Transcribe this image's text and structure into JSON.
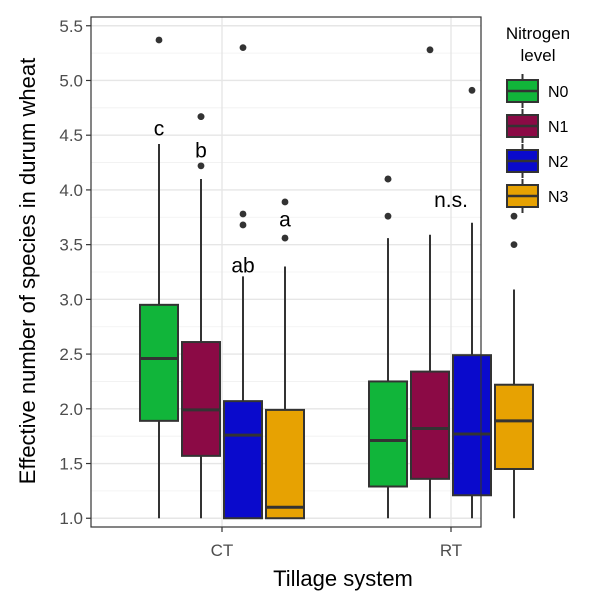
{
  "chart_data": {
    "type": "box",
    "xlabel": "Tillage system",
    "ylabel": "Effective number of species in durum wheat",
    "ylim": [
      0.92,
      5.58
    ],
    "yticks": [
      1.0,
      1.5,
      2.0,
      2.5,
      3.0,
      3.5,
      4.0,
      4.5,
      5.0,
      5.5
    ],
    "ytick_labels": [
      "1.0",
      "1.5",
      "2.0",
      "2.5",
      "3.0",
      "3.5",
      "4.0",
      "4.5",
      "5.0",
      "5.5"
    ],
    "categories": [
      "CT",
      "RT"
    ],
    "grid": true,
    "legend": {
      "title_line1": "Nitrogen",
      "title_line2": "level",
      "position": "top-right",
      "entries": [
        "N0",
        "N1",
        "N2",
        "N3"
      ]
    },
    "series": [
      {
        "name": "N0",
        "color": "#11b53a"
      },
      {
        "name": "N1",
        "color": "#8b0a45"
      },
      {
        "name": "N2",
        "color": "#0a0acc"
      },
      {
        "name": "N3",
        "color": "#e7a202"
      }
    ],
    "boxes": [
      {
        "category": "CT",
        "series": "N0",
        "whisker_low": 1.0,
        "q1": 1.89,
        "median": 2.46,
        "q3": 2.95,
        "whisker_high": 4.42,
        "outliers": [
          5.37
        ]
      },
      {
        "category": "CT",
        "series": "N1",
        "whisker_low": 1.0,
        "q1": 1.57,
        "median": 1.99,
        "q3": 2.61,
        "whisker_high": 4.1,
        "outliers": [
          4.22,
          4.67,
          4.67
        ]
      },
      {
        "category": "CT",
        "series": "N2",
        "whisker_low": 1.0,
        "q1": 1.0,
        "median": 1.76,
        "q3": 2.07,
        "whisker_high": 3.21,
        "outliers": [
          3.68,
          3.78,
          5.3
        ]
      },
      {
        "category": "CT",
        "series": "N3",
        "whisker_low": 1.0,
        "q1": 1.0,
        "median": 1.1,
        "q3": 1.99,
        "whisker_high": 3.3,
        "outliers": [
          3.56,
          3.89
        ]
      },
      {
        "category": "RT",
        "series": "N0",
        "whisker_low": 1.0,
        "q1": 1.29,
        "median": 1.71,
        "q3": 2.25,
        "whisker_high": 3.56,
        "outliers": [
          3.76,
          4.1,
          4.1
        ]
      },
      {
        "category": "RT",
        "series": "N1",
        "whisker_low": 1.0,
        "q1": 1.36,
        "median": 1.82,
        "q3": 2.34,
        "whisker_high": 3.59,
        "outliers": [
          5.28
        ]
      },
      {
        "category": "RT",
        "series": "N2",
        "whisker_low": 1.0,
        "q1": 1.21,
        "median": 1.77,
        "q3": 2.49,
        "whisker_high": 3.7,
        "outliers": [
          4.91
        ]
      },
      {
        "category": "RT",
        "series": "N3",
        "whisker_low": 1.0,
        "q1": 1.45,
        "median": 1.89,
        "q3": 2.22,
        "whisker_high": 3.09,
        "outliers": [
          3.5,
          3.76
        ]
      }
    ],
    "annotations": [
      {
        "text": "c",
        "category": "CT",
        "series": "N0",
        "y": 4.56
      },
      {
        "text": "b",
        "category": "CT",
        "series": "N1",
        "y": 4.36
      },
      {
        "text": "ab",
        "category": "CT",
        "series": "N2",
        "y": 3.31
      },
      {
        "text": "a",
        "category": "CT",
        "series": "N3",
        "y": 3.73
      },
      {
        "text": "n.s.",
        "category": "RT",
        "series": "RT-center",
        "y": 3.91
      }
    ]
  }
}
